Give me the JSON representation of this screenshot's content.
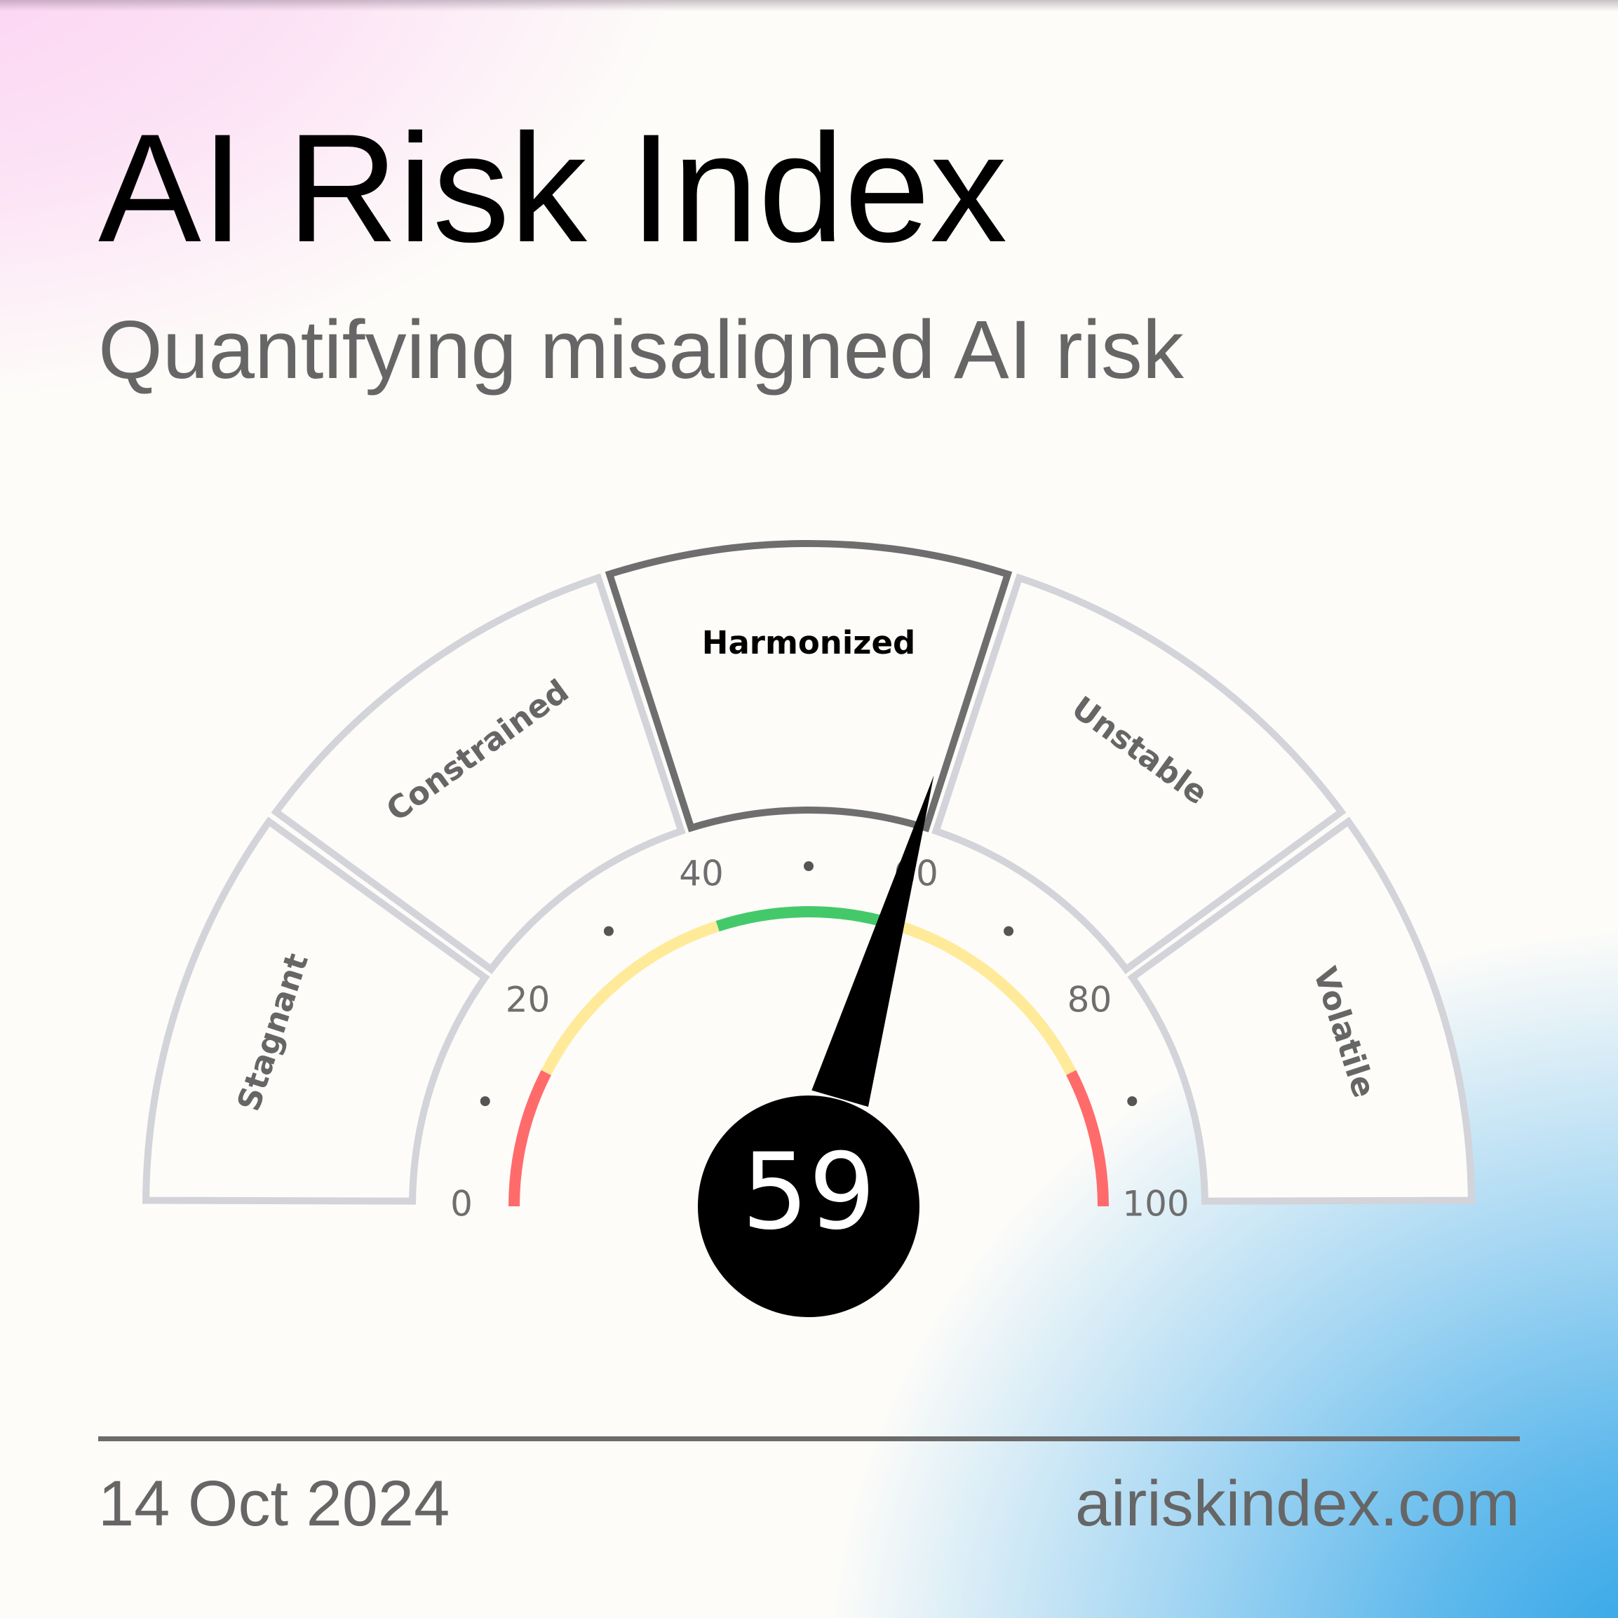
{
  "header": {
    "title": "AI Risk Index",
    "subtitle": "Quantifying misaligned AI risk"
  },
  "footer": {
    "date": "14 Oct 2024",
    "website": "airiskindex.com"
  },
  "chart_data": {
    "type": "gauge",
    "title": "",
    "value": 59,
    "range": [
      0,
      100
    ],
    "tick_labels": [
      "0",
      "20",
      "40",
      "60",
      "80",
      "100"
    ],
    "tick_values": [
      0,
      20,
      40,
      60,
      80,
      100
    ],
    "minor_tick_values": [
      10,
      30,
      50,
      70,
      90
    ],
    "zones": [
      {
        "name": "Stagnant",
        "range": [
          0,
          20
        ],
        "active": false
      },
      {
        "name": "Constrained",
        "range": [
          20,
          40
        ],
        "active": false
      },
      {
        "name": "Harmonized",
        "range": [
          40,
          60
        ],
        "active": true
      },
      {
        "name": "Unstable",
        "range": [
          60,
          80
        ],
        "active": false
      },
      {
        "name": "Volatile",
        "range": [
          80,
          100
        ],
        "active": false
      }
    ],
    "color_bands": [
      {
        "range": [
          0,
          15
        ],
        "color": "#ff6b6b"
      },
      {
        "range": [
          15,
          40
        ],
        "color": "#ffea99"
      },
      {
        "range": [
          40,
          60
        ],
        "color": "#44c96a"
      },
      {
        "range": [
          60,
          85
        ],
        "color": "#ffea99"
      },
      {
        "range": [
          85,
          100
        ],
        "color": "#ff6b6b"
      }
    ],
    "colors": {
      "segment_fill": "#fdfcf9",
      "segment_border": "#d3d3da",
      "active_border": "#6e6e6e",
      "active_label": "#000000",
      "inactive_label": "#666666",
      "needle": "#000000",
      "hub": "#000000",
      "hub_text": "#ffffff"
    }
  }
}
